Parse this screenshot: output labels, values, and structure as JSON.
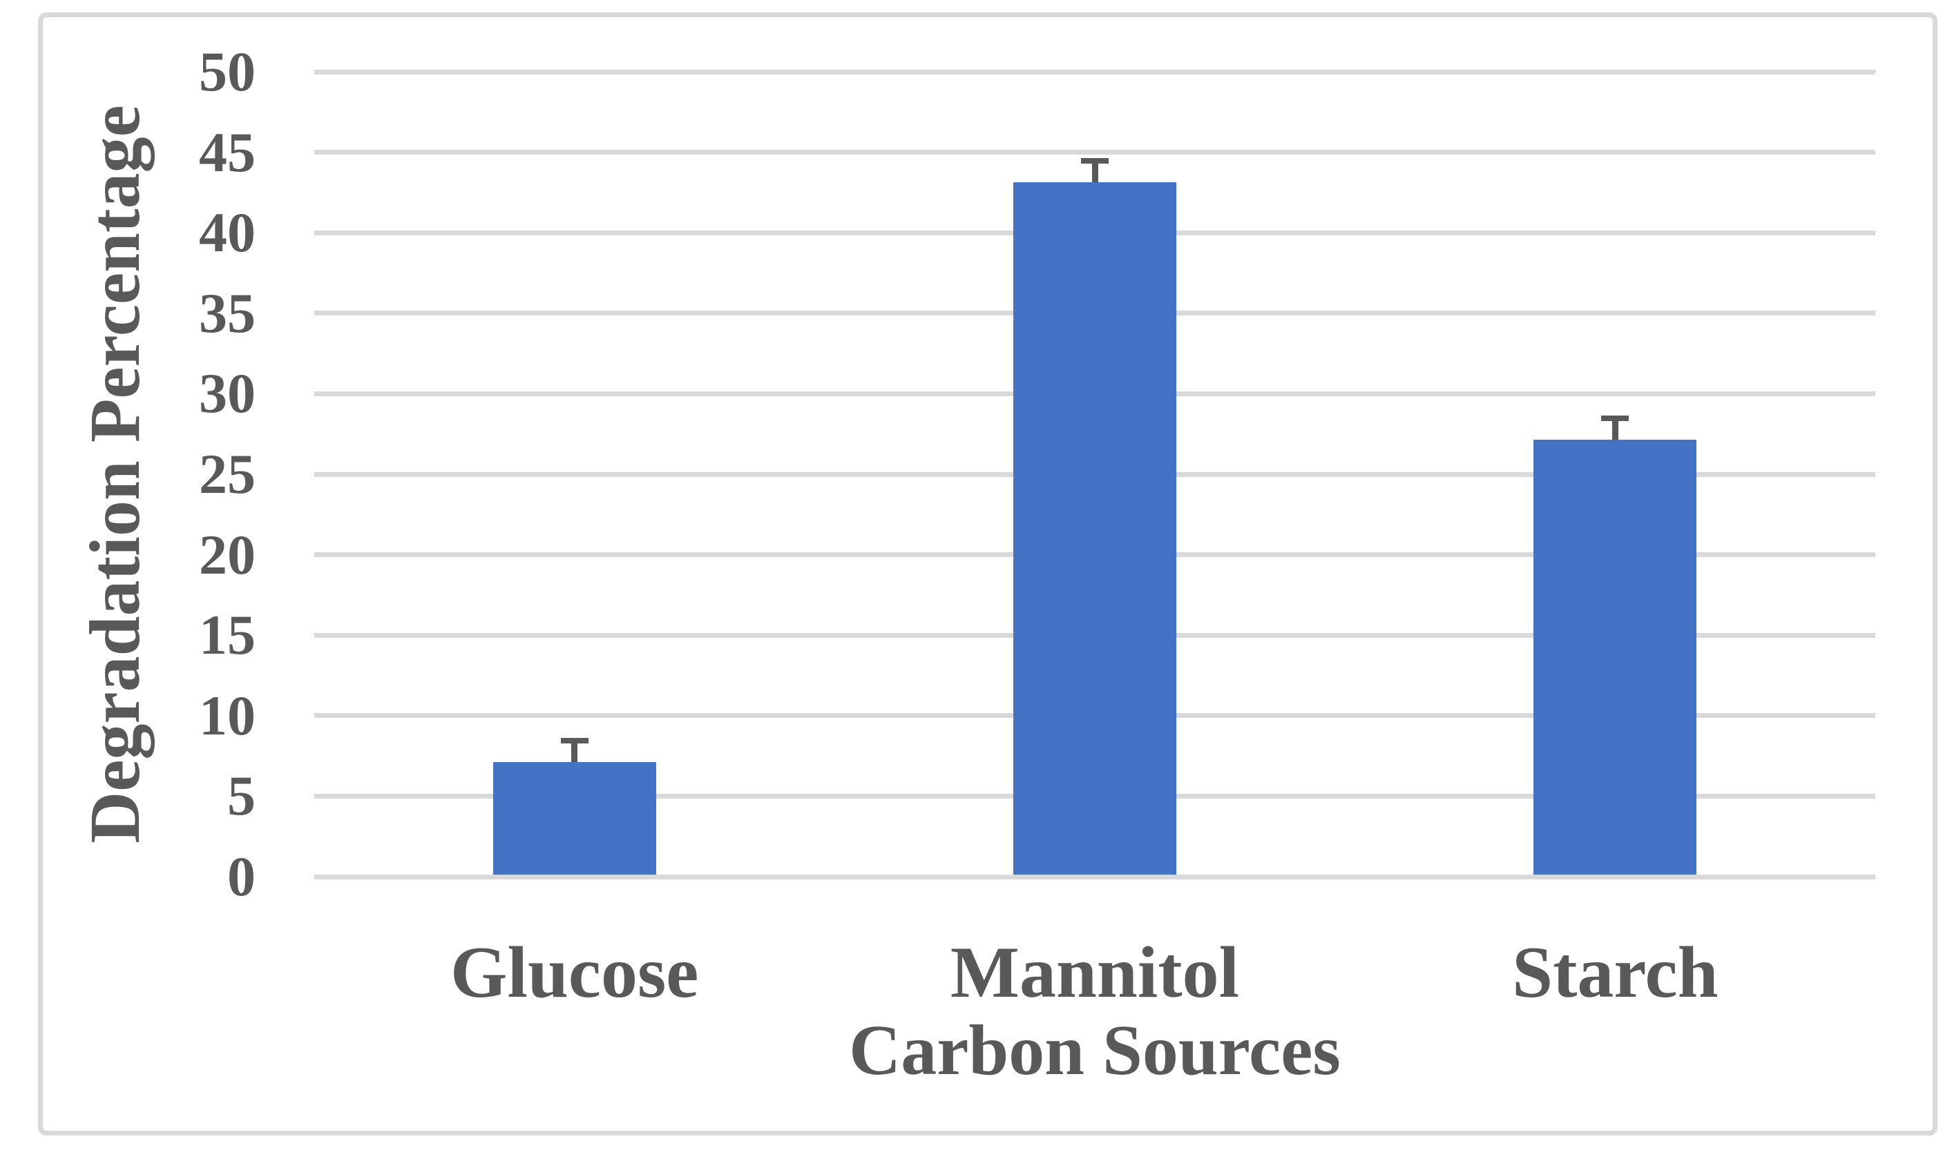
{
  "figure": {
    "background": "#FFFFFF",
    "frame_border_color": "#D9D9D9"
  },
  "chart_data": {
    "type": "bar",
    "title": "",
    "categories": [
      "Glucose",
      "Mannitol",
      "Starch"
    ],
    "values": [
      7,
      43,
      27
    ],
    "error_plus": [
      1.5,
      1.5,
      1.5
    ],
    "xlabel": "Carbon Sources",
    "ylabel": "Degradation Percentage",
    "ylim": [
      0,
      50
    ],
    "ytick_interval": 5,
    "ytick_labels": [
      "0",
      "5",
      "10",
      "15",
      "20",
      "25",
      "30",
      "35",
      "40",
      "45",
      "50"
    ],
    "grid": "horizontal",
    "legend": "none",
    "bar_color": "#4472C4",
    "error_bar_color": "#595959",
    "gridline_color": "#D9D9D9",
    "label_color": "#595959"
  }
}
